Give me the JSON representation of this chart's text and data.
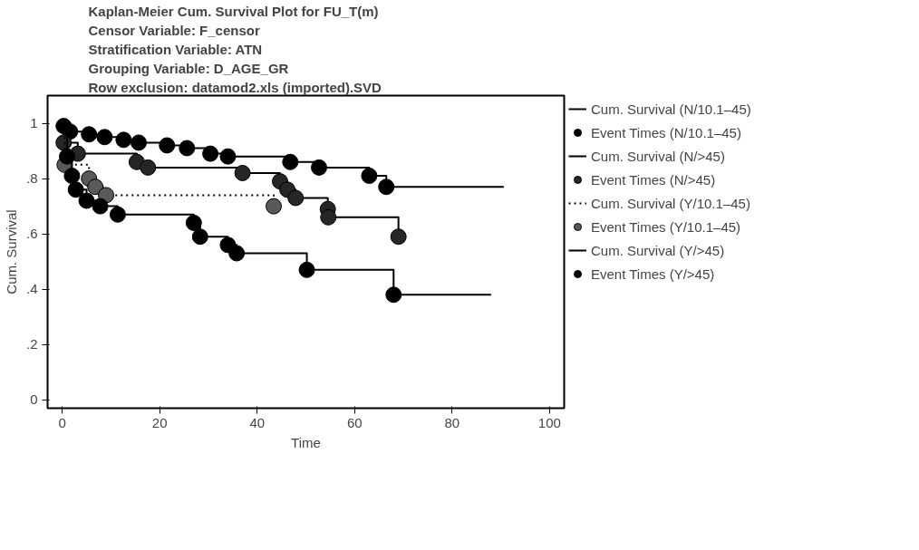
{
  "chart_data": {
    "type": "step",
    "title": "Kaplan-Meier Cum. Survival Plot for FU_T(m)",
    "annotations": [
      "Censor Variable: F_censor",
      "Stratification Variable: ATN",
      "Grouping Variable: D_AGE_GR",
      "Row exclusion: datamod2.xls (imported).SVD"
    ],
    "xlabel": "Time",
    "ylabel": "Cum. Survival",
    "xlim": [
      -3,
      103
    ],
    "xticks": [
      0,
      20,
      40,
      60,
      80,
      100
    ],
    "ylim": [
      -0.03,
      1.1
    ],
    "yticks": [
      0,
      {
        "value": 0.2,
        "label": ".2"
      },
      {
        "value": 0.4,
        "label": ".4"
      },
      {
        "value": 0.6,
        "label": ".6"
      },
      {
        "value": 0.8,
        "label": ".8"
      },
      1
    ],
    "grid": false,
    "legend": "right",
    "series": [
      {
        "name": "Cum. Survival (N/10.1–45)",
        "line_style": "solid",
        "color": "#000000",
        "x": [
          0,
          1.6,
          5.5,
          8.7,
          12.6,
          15.7,
          21.5,
          25.6,
          30.4,
          34,
          46.8,
          52.7,
          63,
          66.5,
          90.6
        ],
        "values": [
          1,
          0.97,
          0.96,
          0.95,
          0.94,
          0.93,
          0.92,
          0.91,
          0.89,
          0.88,
          0.86,
          0.84,
          0.81,
          0.77,
          0.77
        ]
      },
      {
        "name": "Event Times (N/10.1–45)",
        "type": "scatter",
        "marker": "circle",
        "color": "#000000",
        "x": [
          0.3,
          1.6,
          5.5,
          8.7,
          12.6,
          15.7,
          21.5,
          25.6,
          30.4,
          34,
          46.8,
          52.7,
          63,
          66.5
        ],
        "values": [
          0.99,
          0.97,
          0.96,
          0.95,
          0.94,
          0.93,
          0.92,
          0.91,
          0.89,
          0.88,
          0.86,
          0.84,
          0.81,
          0.77
        ]
      },
      {
        "name": "Cum. Survival (N/>45)",
        "line_style": "solid",
        "color": "#000000",
        "x": [
          0,
          0.3,
          3.2,
          15.3,
          17.6,
          37,
          44.7,
          46.2,
          47.9,
          54.5,
          54.6,
          69
        ],
        "values": [
          1,
          0.93,
          0.89,
          0.86,
          0.84,
          0.82,
          0.79,
          0.76,
          0.73,
          0.69,
          0.66,
          0.59
        ]
      },
      {
        "name": "Event Times (N/>45)",
        "type": "scatter",
        "marker": "circle",
        "color": "#262626",
        "x": [
          0.3,
          3.2,
          15.3,
          17.6,
          37,
          44.7,
          46.2,
          47.9,
          54.5,
          54.6,
          69
        ],
        "values": [
          0.93,
          0.89,
          0.86,
          0.84,
          0.82,
          0.79,
          0.76,
          0.73,
          0.69,
          0.66,
          0.59
        ]
      },
      {
        "name": "Cum. Survival (Y/10.1–45)",
        "line_style": "dotted",
        "color": "#000000",
        "x": [
          0,
          0.5,
          5.5,
          6.8,
          9,
          43.4
        ],
        "values": [
          1,
          0.85,
          0.8,
          0.77,
          0.74,
          0.7
        ]
      },
      {
        "name": "Event Times (Y/10.1–45)",
        "type": "scatter",
        "marker": "circle",
        "color": "#595959",
        "x": [
          0.5,
          5.5,
          6.8,
          9,
          43.4
        ],
        "values": [
          0.85,
          0.8,
          0.77,
          0.74,
          0.7
        ]
      },
      {
        "name": "Cum. Survival (Y/>45)",
        "line_style": "solid",
        "color": "#000000",
        "x": [
          0,
          1,
          2,
          2.8,
          5,
          7.8,
          11.4,
          27,
          28.3,
          34,
          35.8,
          50.2,
          68,
          88
        ],
        "values": [
          1,
          0.88,
          0.81,
          0.76,
          0.72,
          0.7,
          0.67,
          0.64,
          0.59,
          0.56,
          0.53,
          0.47,
          0.38,
          0.38
        ]
      },
      {
        "name": "Event Times (Y/>45)",
        "type": "scatter",
        "marker": "circle",
        "color": "#000000",
        "x": [
          1,
          2,
          2.8,
          5,
          7.8,
          11.4,
          27,
          28.3,
          34,
          35.8,
          50.2,
          68
        ],
        "values": [
          0.88,
          0.81,
          0.76,
          0.72,
          0.7,
          0.67,
          0.64,
          0.59,
          0.56,
          0.53,
          0.47,
          0.38
        ]
      }
    ]
  }
}
